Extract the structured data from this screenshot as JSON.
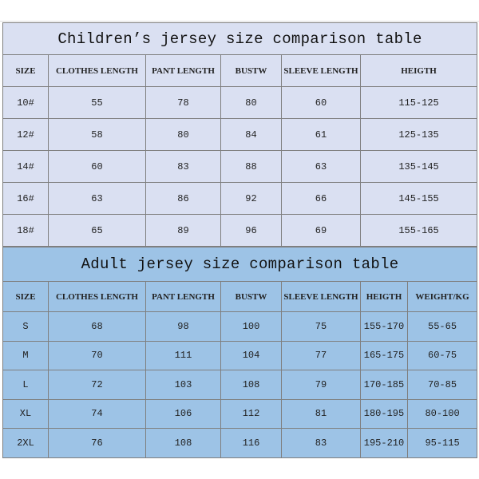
{
  "children": {
    "title": "Children’s jersey size comparison table",
    "headers": [
      "SIZE",
      "CLOTHES LENGTH",
      "PANT LENGTH",
      "BUSTW",
      "SLEEVE LENGTH",
      "HEIGTH"
    ],
    "rows": [
      [
        "10#",
        "55",
        "78",
        "80",
        "60",
        "115-125"
      ],
      [
        "12#",
        "58",
        "80",
        "84",
        "61",
        "125-135"
      ],
      [
        "14#",
        "60",
        "83",
        "88",
        "63",
        "135-145"
      ],
      [
        "16#",
        "63",
        "86",
        "92",
        "66",
        "145-155"
      ],
      [
        "18#",
        "65",
        "89",
        "96",
        "69",
        "155-165"
      ]
    ],
    "background": "#dae0f2"
  },
  "adult": {
    "title": "Adult jersey size comparison table",
    "headers": [
      "SIZE",
      "CLOTHES LENGTH",
      "PANT LENGTH",
      "BUSTW",
      "SLEEVE LENGTH",
      "HEIGTH",
      "WEIGHT/KG"
    ],
    "rows": [
      [
        "S",
        "68",
        "98",
        "100",
        "75",
        "155-170",
        "55-65"
      ],
      [
        "M",
        "70",
        "111",
        "104",
        "77",
        "165-175",
        "60-75"
      ],
      [
        "L",
        "72",
        "103",
        "108",
        "79",
        "170-185",
        "70-85"
      ],
      [
        "XL",
        "74",
        "106",
        "112",
        "81",
        "180-195",
        "80-100"
      ],
      [
        "2XL",
        "76",
        "108",
        "116",
        "83",
        "195-210",
        "95-115"
      ]
    ],
    "background": "#9dc3e6"
  }
}
